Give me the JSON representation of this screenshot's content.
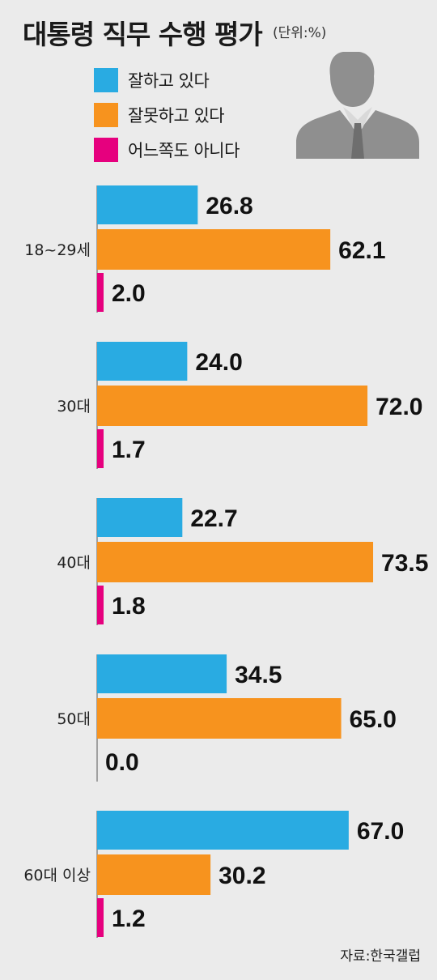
{
  "title": "대통령 직무 수행 평가",
  "unit": "(단위:%)",
  "source": "자료:한국갤럽",
  "colors": {
    "good": "#29abe2",
    "bad": "#f7931e",
    "neither": "#e6007e"
  },
  "chart_data": {
    "type": "bar",
    "orientation": "horizontal",
    "title": "대통령 직무 수행 평가",
    "unit": "(단위:%)",
    "legend_position": "top-left",
    "grid": false,
    "categories": [
      "18~29세",
      "30대",
      "40대",
      "50대",
      "60대 이상"
    ],
    "series": [
      {
        "name": "잘하고 있다",
        "values": [
          26.8,
          24.0,
          22.7,
          34.5,
          67.0
        ]
      },
      {
        "name": "잘못하고 있다",
        "values": [
          62.1,
          72.0,
          73.5,
          65.0,
          30.2
        ]
      },
      {
        "name": "어느쪽도 아니다",
        "values": [
          2.0,
          1.7,
          1.8,
          0.0,
          1.2
        ]
      }
    ],
    "value_labels": [
      [
        "26.8",
        "62.1",
        "2.0"
      ],
      [
        "24.0",
        "72.0",
        "1.7"
      ],
      [
        "22.7",
        "73.5",
        "1.8"
      ],
      [
        "34.5",
        "65.0",
        "0.0"
      ],
      [
        "67.0",
        "30.2",
        "1.2"
      ]
    ],
    "xlim": [
      0,
      100
    ]
  }
}
